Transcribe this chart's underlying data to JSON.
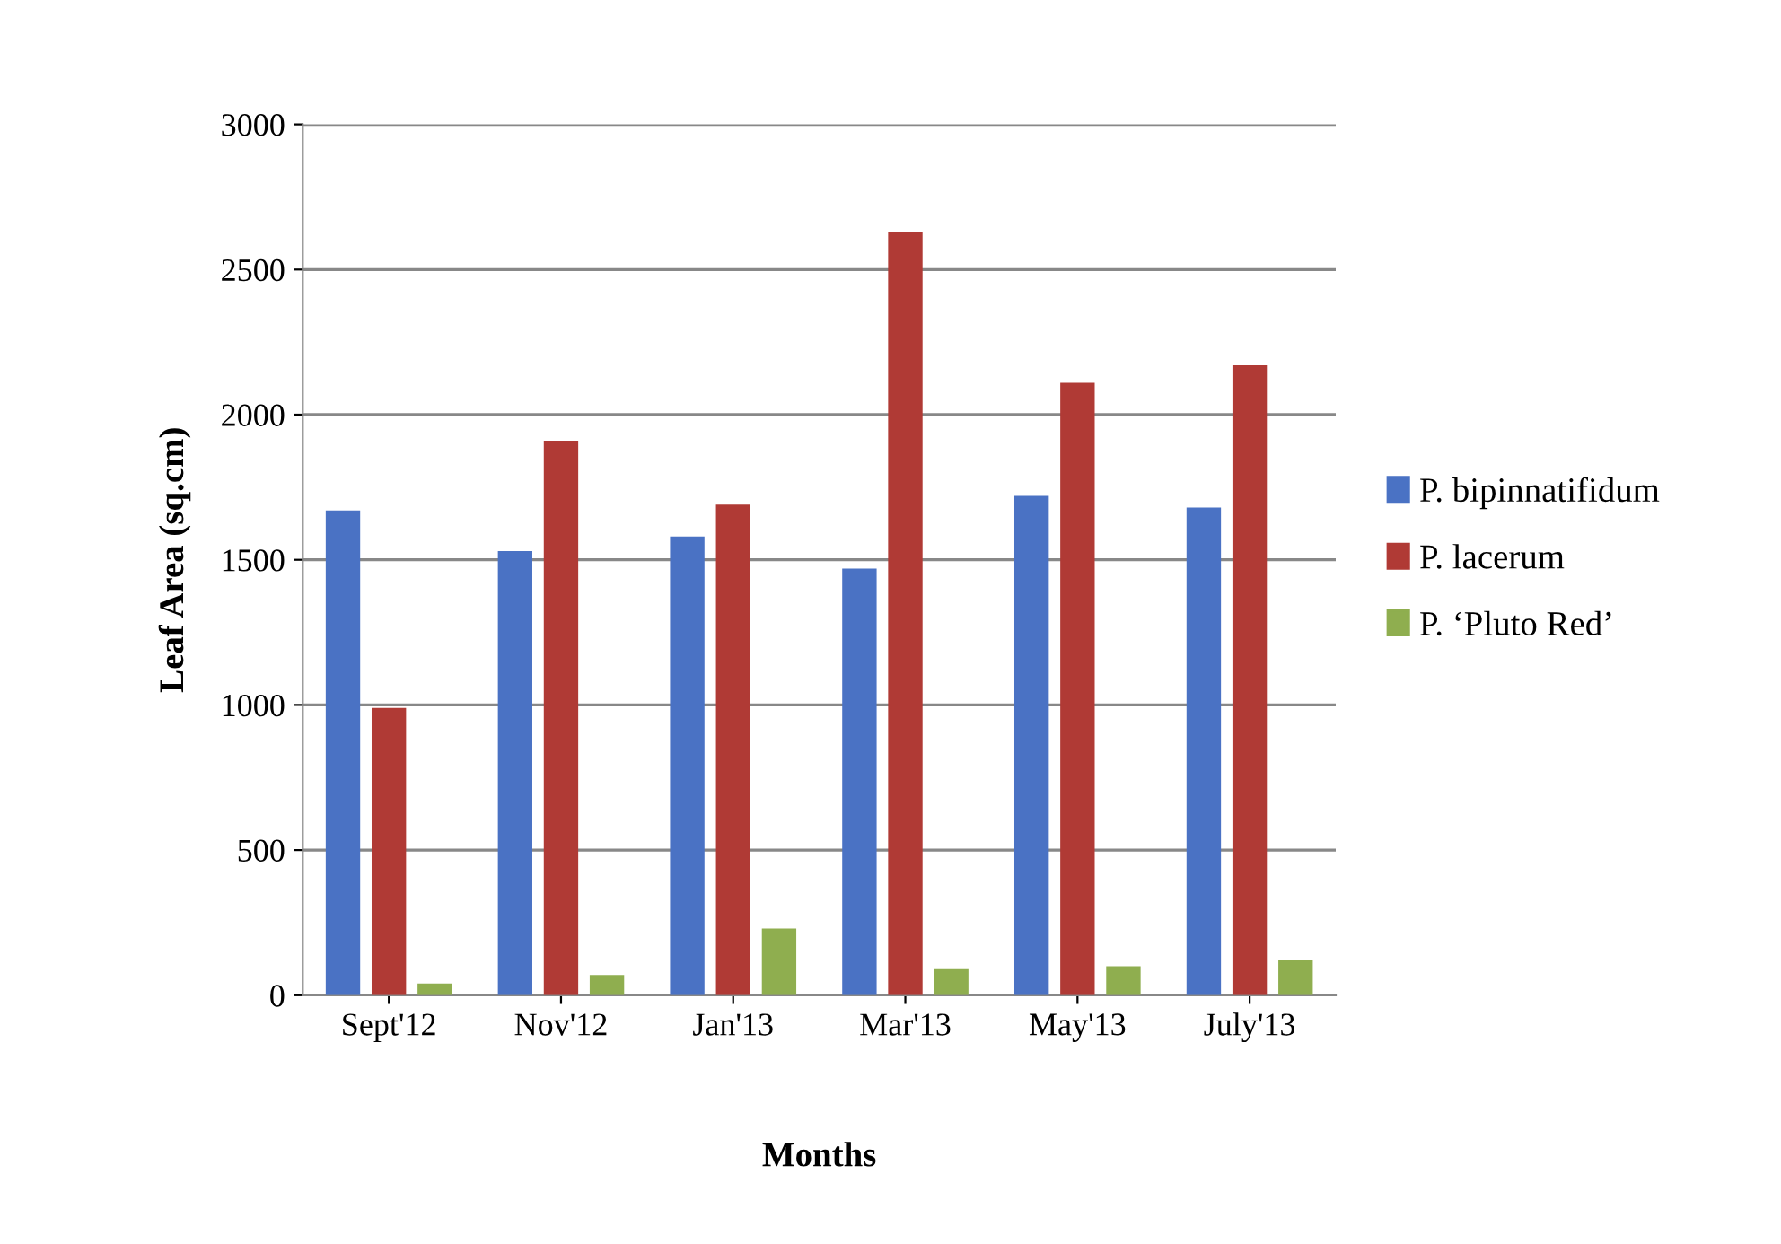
{
  "chart_data": {
    "type": "bar",
    "xlabel": "Months",
    "ylabel": "Leaf Area (sq.cm)",
    "categories": [
      "Sept'12",
      "Nov'12",
      "Jan'13",
      "Mar'13",
      "May'13",
      "July'13"
    ],
    "series": [
      {
        "name": "P. bipinnatifidum",
        "color": "#4a72c4",
        "values": [
          1670,
          1530,
          1580,
          1470,
          1720,
          1680
        ]
      },
      {
        "name": "P. lacerum",
        "color": "#b03a35",
        "values": [
          990,
          1910,
          1690,
          2630,
          2110,
          2170
        ]
      },
      {
        "name": "P. ‘Pluto Red’",
        "color": "#8fae4f",
        "values": [
          40,
          70,
          230,
          90,
          100,
          120
        ]
      }
    ],
    "ylim": [
      0,
      3000
    ],
    "yticks": [
      0,
      500,
      1000,
      1500,
      2000,
      2500,
      3000
    ],
    "grid": "y",
    "legend": "right"
  }
}
